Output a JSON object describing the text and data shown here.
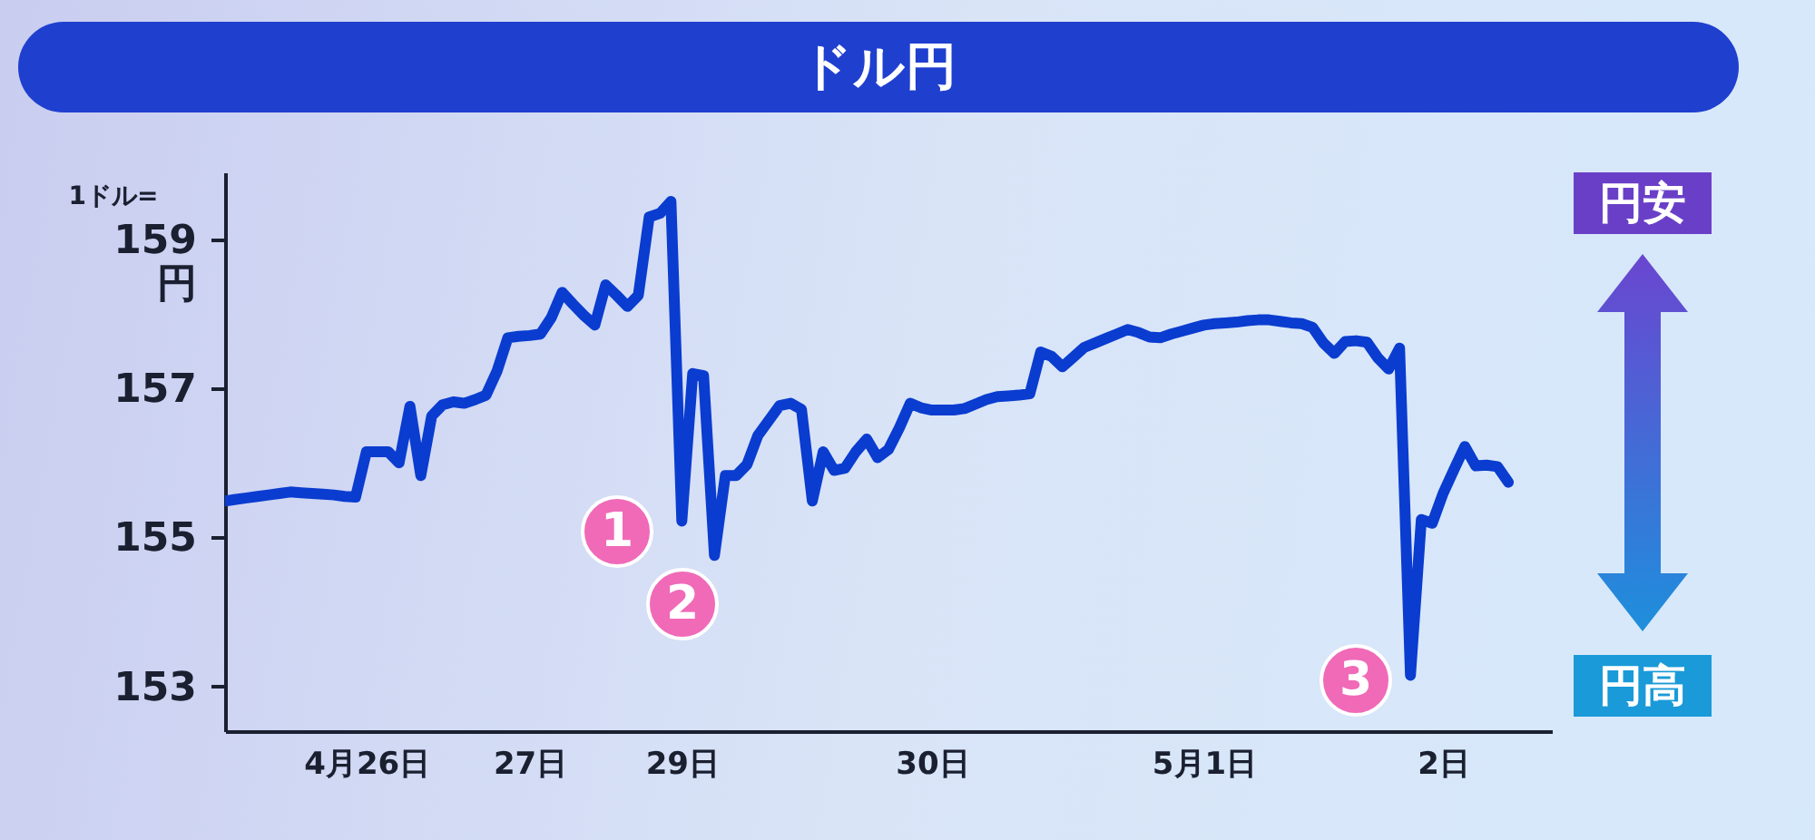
{
  "chart_data": {
    "type": "line",
    "title": "ドル円",
    "ylabel": "1ドル=",
    "categories": [
      null,
      null,
      null,
      null,
      null,
      null,
      null,
      null,
      null,
      null,
      null,
      null,
      null,
      "4月26日",
      null,
      null,
      null,
      null,
      null,
      null,
      null,
      null,
      null,
      null,
      null,
      null,
      null,
      null,
      "27日",
      null,
      null,
      null,
      null,
      null,
      null,
      null,
      null,
      null,
      null,
      null,
      null,
      null,
      "29日",
      null,
      null,
      null,
      null,
      null,
      null,
      null,
      null,
      null,
      null,
      null,
      null,
      null,
      null,
      null,
      null,
      null,
      null,
      null,
      null,
      null,
      null,
      "30日",
      null,
      null,
      null,
      null,
      null,
      null,
      null,
      null,
      null,
      null,
      null,
      null,
      null,
      null,
      null,
      null,
      null,
      null,
      null,
      null,
      null,
      null,
      null,
      null,
      "5月1日",
      null,
      null,
      null,
      null,
      null,
      null,
      null,
      null,
      null,
      null,
      null,
      null,
      null,
      null,
      null,
      null,
      null,
      null,
      null,
      null,
      null,
      "2日",
      null,
      null,
      null,
      null,
      null,
      null,
      null,
      null,
      null,
      null
    ],
    "series": [
      {
        "color": "#0a3cd0",
        "values": [
          155.49,
          155.51,
          155.53,
          155.55,
          155.57,
          155.59,
          155.61,
          155.6,
          155.59,
          155.58,
          155.57,
          155.55,
          155.54,
          156.15,
          156.15,
          156.15,
          156.0,
          156.76,
          155.83,
          156.63,
          156.78,
          156.82,
          156.8,
          156.85,
          156.91,
          157.23,
          157.68,
          157.7,
          157.71,
          157.73,
          157.95,
          158.29,
          158.13,
          157.98,
          157.85,
          158.39,
          158.25,
          158.1,
          158.25,
          159.3,
          159.35,
          159.51,
          155.22,
          157.2,
          157.17,
          154.76,
          155.83,
          155.83,
          155.98,
          156.37,
          156.57,
          156.77,
          156.8,
          156.72,
          155.49,
          156.15,
          155.9,
          155.93,
          156.15,
          156.32,
          156.07,
          156.18,
          156.47,
          156.8,
          156.74,
          156.71,
          156.71,
          156.71,
          156.73,
          156.79,
          156.85,
          156.89,
          156.9,
          156.91,
          156.93,
          157.49,
          157.43,
          157.29,
          157.42,
          157.55,
          157.61,
          157.67,
          157.73,
          157.79,
          157.75,
          157.69,
          157.68,
          157.73,
          157.77,
          157.81,
          157.85,
          157.87,
          157.88,
          157.89,
          157.91,
          157.92,
          157.92,
          157.9,
          157.88,
          157.87,
          157.82,
          157.61,
          157.47,
          157.63,
          157.64,
          157.62,
          157.41,
          157.26,
          157.54,
          153.15,
          155.24,
          155.19,
          155.59,
          155.91,
          156.22,
          155.96,
          155.97,
          155.95,
          155.74,
          null,
          null,
          null,
          null
        ]
      }
    ],
    "ylim": [
      152.4,
      159.9
    ],
    "yticks": [
      {
        "value": 159,
        "label": "159\n円"
      },
      157,
      155,
      153
    ],
    "annotations": [
      "1",
      "2",
      "3",
      "円安",
      "円高"
    ]
  }
}
